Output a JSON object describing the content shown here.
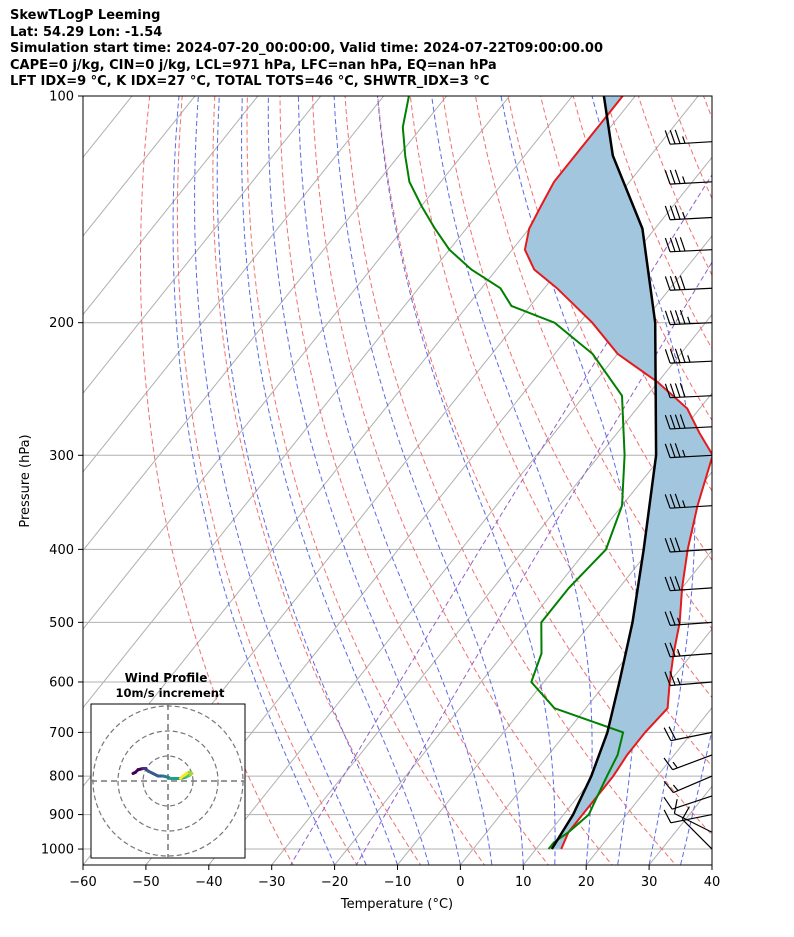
{
  "header": {
    "line1": "SkewTLogP Leeming",
    "line2": "Lat: 54.29   Lon: -1.54",
    "line3": "Simulation start time: 2024-07-20_00:00:00, Valid time: 2024-07-22T09:00:00.00",
    "line4": "CAPE=0 j/kg, CIN=0 j/kg, LCL=971 hPa, LFC=nan hPa, EQ=nan hPa",
    "line5": "LFT IDX=9 °C, K IDX=27 °C, TOTAL TOTS=46 °C, SHWTR_IDX=3 °C"
  },
  "chart_data": {
    "type": "line",
    "title": "SkewTLogP Leeming",
    "xlabel": "Temperature (°C)",
    "ylabel": "Pressure (hPa)",
    "xlim": [
      -60,
      40
    ],
    "ylim": [
      1050,
      100
    ],
    "yscale": "log",
    "grid": true,
    "x_ticks": [
      "−60",
      "−50",
      "−40",
      "−30",
      "−20",
      "−10",
      "0",
      "10",
      "20",
      "30",
      "40"
    ],
    "y_ticks": [
      "100",
      "200",
      "300",
      "400",
      "500",
      "600",
      "700",
      "800",
      "900",
      "1000"
    ],
    "colors": {
      "temperature": "#e41a1c",
      "dewpoint": "#008000",
      "parcel": "#000000",
      "cape_fill": "#a3c6df",
      "dry_adiabats": "#f07070",
      "moist_adiabats": "#5a6ae8",
      "mixing_ratio": "#9060c8",
      "isotherms": "#b0b0b0"
    },
    "series": [
      {
        "name": "",
        "role": "temperature",
        "points": [
          [
            14,
            1000
          ],
          [
            13,
            950
          ],
          [
            13,
            900
          ],
          [
            13,
            850
          ],
          [
            13,
            800
          ],
          [
            12.5,
            750
          ],
          [
            12.5,
            700
          ],
          [
            13,
            650
          ],
          [
            10,
            600
          ],
          [
            7,
            550
          ],
          [
            4,
            500
          ],
          [
            0,
            450
          ],
          [
            -4,
            400
          ],
          [
            -8,
            350
          ],
          [
            -12,
            300
          ],
          [
            -17,
            280
          ],
          [
            -22,
            260
          ],
          [
            -30,
            240
          ],
          [
            -40,
            220
          ],
          [
            -48,
            200
          ],
          [
            -58,
            180
          ],
          [
            -64,
            170
          ],
          [
            -68,
            160
          ],
          [
            -70,
            150
          ],
          [
            -71,
            140
          ],
          [
            -72,
            130
          ],
          [
            -72,
            120
          ],
          [
            -72,
            110
          ],
          [
            -72,
            100
          ]
        ]
      },
      {
        "name": "",
        "role": "dewpoint",
        "points": [
          [
            12,
            1000
          ],
          [
            12,
            980
          ],
          [
            13,
            950
          ],
          [
            14,
            900
          ],
          [
            13,
            850
          ],
          [
            12,
            800
          ],
          [
            11,
            750
          ],
          [
            9,
            700
          ],
          [
            -5,
            650
          ],
          [
            -12,
            600
          ],
          [
            -14,
            550
          ],
          [
            -18,
            500
          ],
          [
            -18,
            450
          ],
          [
            -17,
            400
          ],
          [
            -20,
            350
          ],
          [
            -26,
            300
          ],
          [
            -34,
            250
          ],
          [
            -44,
            220
          ],
          [
            -54,
            200
          ],
          [
            -63,
            190
          ],
          [
            -67,
            180
          ],
          [
            -74,
            170
          ],
          [
            -80,
            160
          ],
          [
            -85,
            150
          ],
          [
            -90,
            140
          ],
          [
            -95,
            130
          ],
          [
            -99,
            120
          ],
          [
            -103,
            110
          ],
          [
            -106,
            100
          ]
        ]
      },
      {
        "name": "",
        "role": "parcel",
        "points": [
          [
            12.5,
            1000
          ],
          [
            11.5,
            900
          ],
          [
            9.5,
            800
          ],
          [
            6.5,
            700
          ],
          [
            2,
            600
          ],
          [
            -3.5,
            500
          ],
          [
            -11,
            400
          ],
          [
            -21,
            300
          ],
          [
            -38,
            200
          ],
          [
            -52,
            150
          ],
          [
            -66,
            120
          ],
          [
            -75,
            100
          ]
        ]
      }
    ],
    "wind_barbs": [
      {
        "p": 1000,
        "u": 3,
        "v": -3
      },
      {
        "p": 950,
        "u": 4,
        "v": -2
      },
      {
        "p": 900,
        "u": 5,
        "v": 1
      },
      {
        "p": 850,
        "u": 6,
        "v": 2
      },
      {
        "p": 800,
        "u": 7,
        "v": 3
      },
      {
        "p": 750,
        "u": 8,
        "v": 3
      },
      {
        "p": 700,
        "u": 10,
        "v": 2
      },
      {
        "p": 600,
        "u": 12,
        "v": 1
      },
      {
        "p": 550,
        "u": 13,
        "v": 1
      },
      {
        "p": 500,
        "u": 14,
        "v": 1
      },
      {
        "p": 450,
        "u": 15,
        "v": 1
      },
      {
        "p": 400,
        "u": 16,
        "v": 1
      },
      {
        "p": 350,
        "u": 17,
        "v": 1
      },
      {
        "p": 300,
        "u": 18,
        "v": 1
      },
      {
        "p": 275,
        "u": 20,
        "v": 1
      },
      {
        "p": 250,
        "u": 21,
        "v": 1
      },
      {
        "p": 225,
        "u": 22,
        "v": 1
      },
      {
        "p": 200,
        "u": 22,
        "v": 1
      },
      {
        "p": 180,
        "u": 21,
        "v": 1
      },
      {
        "p": 160,
        "u": 20,
        "v": 1
      },
      {
        "p": 145,
        "u": 19,
        "v": 1
      },
      {
        "p": 130,
        "u": 18,
        "v": 1
      },
      {
        "p": 115,
        "u": 17,
        "v": 1
      }
    ],
    "inset": {
      "title": "Wind Profile",
      "subtitle": "10m/s increment",
      "rings": [
        1,
        2,
        3
      ],
      "hodograph": [
        [
          -14,
          3
        ],
        [
          -13,
          3.5
        ],
        [
          -12,
          4.5
        ],
        [
          -10,
          5
        ],
        [
          -9,
          5
        ],
        [
          -8,
          4
        ],
        [
          -6,
          3
        ],
        [
          -4,
          2
        ],
        [
          -2,
          2
        ],
        [
          0,
          1.5
        ],
        [
          1,
          1
        ],
        [
          3,
          1
        ],
        [
          5,
          1
        ],
        [
          7,
          1.5
        ],
        [
          8,
          2
        ],
        [
          9,
          2.5
        ],
        [
          9.5,
          3
        ],
        [
          8.5,
          3.5
        ],
        [
          7.5,
          3
        ],
        [
          6,
          2
        ],
        [
          5,
          1
        ]
      ]
    }
  }
}
